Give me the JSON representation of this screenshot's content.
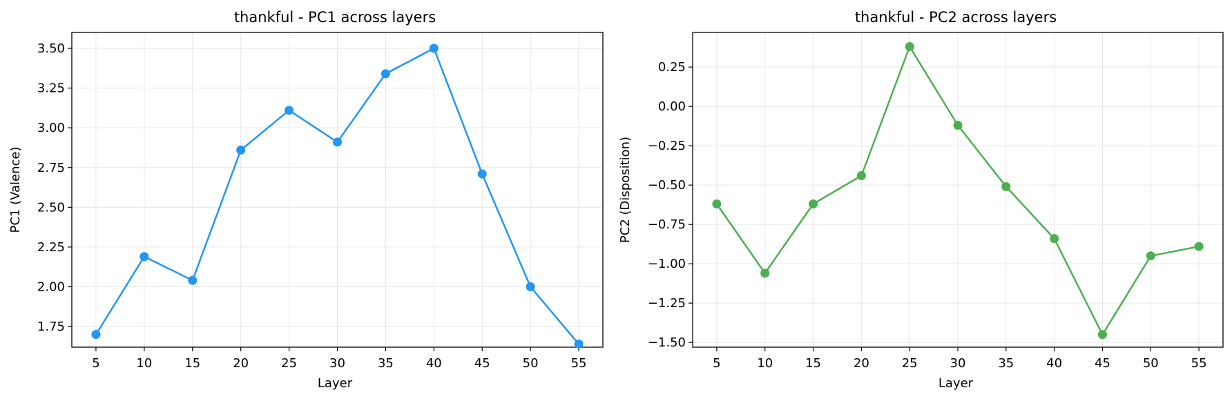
{
  "chart_data": [
    {
      "type": "line",
      "title": "thankful - PC1 across layers",
      "xlabel": "Layer",
      "ylabel": "PC1 (Valence)",
      "x": [
        5,
        10,
        15,
        20,
        25,
        30,
        35,
        40,
        45,
        50,
        55
      ],
      "series": [
        {
          "values": [
            1.7,
            2.19,
            2.04,
            2.86,
            3.11,
            2.91,
            3.34,
            3.5,
            2.71,
            2.0,
            1.64
          ],
          "color": "#2196f3"
        }
      ],
      "xticks": [
        "5",
        "10",
        "15",
        "20",
        "25",
        "30",
        "35",
        "40",
        "45",
        "50",
        "55"
      ],
      "yticks": [
        "1.75",
        "2.00",
        "2.25",
        "2.50",
        "2.75",
        "3.00",
        "3.25",
        "3.50"
      ],
      "xlim": [
        2.5,
        57.5
      ],
      "ylim": [
        1.62,
        3.6
      ],
      "grid": true
    },
    {
      "type": "line",
      "title": "thankful - PC2 across layers",
      "xlabel": "Layer",
      "ylabel": "PC2 (Disposition)",
      "x": [
        5,
        10,
        15,
        20,
        25,
        30,
        35,
        40,
        45,
        50,
        55
      ],
      "series": [
        {
          "values": [
            -0.62,
            -1.06,
            -0.62,
            -0.44,
            0.38,
            -0.12,
            -0.51,
            -0.84,
            -1.45,
            -0.95,
            -0.89
          ],
          "color": "#4caf50"
        }
      ],
      "xticks": [
        "5",
        "10",
        "15",
        "20",
        "25",
        "30",
        "35",
        "40",
        "45",
        "50",
        "55"
      ],
      "yticks": [
        "−1.50",
        "−1.25",
        "−1.00",
        "−0.75",
        "−0.50",
        "−0.25",
        "0.00",
        "0.25"
      ],
      "xlim": [
        2.5,
        57.5
      ],
      "ylim": [
        -1.53,
        0.47
      ],
      "grid": true
    }
  ]
}
